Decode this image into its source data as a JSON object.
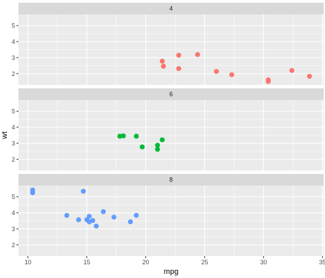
{
  "chart_data": {
    "type": "scatter",
    "facet_layout": "rows",
    "xlabel": "mpg",
    "ylabel": "wt",
    "xlim": [
      9.2,
      35.1
    ],
    "ylim": [
      1.3,
      5.7
    ],
    "x_ticks": [
      10,
      15,
      20,
      25,
      30,
      35
    ],
    "y_ticks": [
      2,
      3,
      4,
      5
    ],
    "grid": true,
    "legend": "none",
    "colors": {
      "panel_bg": "#ebebeb",
      "strip_bg": "#d9d9d9",
      "grid": "#ffffff"
    },
    "panels": [
      {
        "strip_label": "4",
        "color": "#F8766D",
        "points": [
          {
            "x": 22.8,
            "y": 2.32
          },
          {
            "x": 24.4,
            "y": 3.19
          },
          {
            "x": 22.8,
            "y": 3.15
          },
          {
            "x": 32.4,
            "y": 2.2
          },
          {
            "x": 30.4,
            "y": 1.615
          },
          {
            "x": 33.9,
            "y": 1.835
          },
          {
            "x": 21.5,
            "y": 2.465
          },
          {
            "x": 27.3,
            "y": 1.935
          },
          {
            "x": 26.0,
            "y": 2.14
          },
          {
            "x": 30.4,
            "y": 1.513
          },
          {
            "x": 21.4,
            "y": 2.78
          }
        ]
      },
      {
        "strip_label": "6",
        "color": "#00BA38",
        "points": [
          {
            "x": 21.0,
            "y": 2.62
          },
          {
            "x": 21.0,
            "y": 2.875
          },
          {
            "x": 21.4,
            "y": 3.215
          },
          {
            "x": 18.1,
            "y": 3.46
          },
          {
            "x": 19.2,
            "y": 3.44
          },
          {
            "x": 17.8,
            "y": 3.44
          },
          {
            "x": 19.7,
            "y": 2.77
          }
        ]
      },
      {
        "strip_label": "8",
        "color": "#619CFF",
        "points": [
          {
            "x": 18.7,
            "y": 3.44
          },
          {
            "x": 14.3,
            "y": 3.57
          },
          {
            "x": 16.4,
            "y": 4.07
          },
          {
            "x": 17.3,
            "y": 3.73
          },
          {
            "x": 15.2,
            "y": 3.78
          },
          {
            "x": 10.4,
            "y": 5.25
          },
          {
            "x": 10.4,
            "y": 5.424
          },
          {
            "x": 14.7,
            "y": 5.345
          },
          {
            "x": 15.5,
            "y": 3.52
          },
          {
            "x": 15.2,
            "y": 3.435
          },
          {
            "x": 13.3,
            "y": 3.84
          },
          {
            "x": 19.2,
            "y": 3.845
          },
          {
            "x": 15.8,
            "y": 3.17
          },
          {
            "x": 15.0,
            "y": 3.57
          }
        ]
      }
    ]
  }
}
